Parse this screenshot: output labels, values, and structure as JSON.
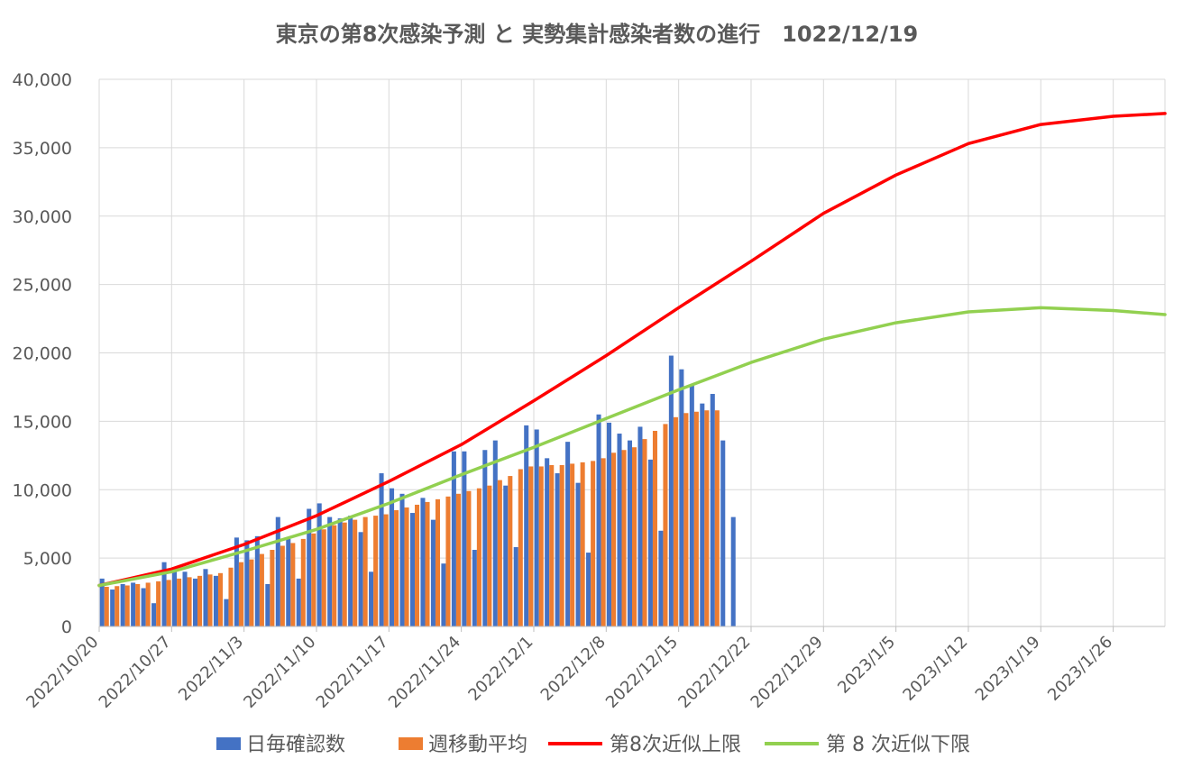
{
  "chart_data": {
    "type": "bar",
    "title": "東京の第8次感染予測 と 実勢集計感染者数の進行　1022/12/19",
    "xlabel": "",
    "ylabel": "",
    "ylim": [
      0,
      40000
    ],
    "yticks": [
      0,
      5000,
      10000,
      15000,
      20000,
      25000,
      30000,
      35000,
      40000
    ],
    "ytick_labels": [
      "0",
      "5,000",
      "10,000",
      "15,000",
      "20,000",
      "25,000",
      "30,000",
      "35,000",
      "40,000"
    ],
    "x_start": "2022/10/20",
    "x_end": "2023/1/31",
    "xtick_labels": [
      "2022/10/20",
      "2022/10/27",
      "2022/11/3",
      "2022/11/10",
      "2022/11/17",
      "2022/11/24",
      "2022/12/1",
      "2022/12/8",
      "2022/12/15",
      "2022/12/22",
      "2022/12/29",
      "2023/1/5",
      "2023/1/12",
      "2023/1/19",
      "2023/1/26"
    ],
    "grid": true,
    "legend_position": "bottom",
    "series": [
      {
        "name": "日毎確認数",
        "type": "bar",
        "color": "#4472C4",
        "x_start": "2022/10/20",
        "values": [
          3500,
          2700,
          3100,
          3200,
          2800,
          1700,
          4700,
          4300,
          4000,
          3500,
          4200,
          3700,
          2000,
          6500,
          6300,
          6600,
          3100,
          8000,
          6400,
          3500,
          8600,
          9000,
          8000,
          7900,
          8100,
          6900,
          4000,
          11200,
          10100,
          9700,
          8300,
          9400,
          7800,
          4600,
          12800,
          12800,
          5600,
          12900,
          13600,
          10300,
          5800,
          14700,
          14400,
          12300,
          11200,
          13500,
          10500,
          5400,
          15500,
          14900,
          14100,
          13600,
          14600,
          12200,
          7000,
          19800,
          18800,
          17700,
          16300,
          17000,
          13600,
          8000
        ]
      },
      {
        "name": "週移動平均",
        "type": "bar",
        "color": "#ED7D31",
        "x_start": "2022/10/20",
        "values": [
          2900,
          2950,
          3000,
          3100,
          3200,
          3300,
          3400,
          3500,
          3600,
          3700,
          3800,
          3900,
          4300,
          4700,
          4900,
          5300,
          5600,
          5900,
          6100,
          6400,
          6800,
          7100,
          7400,
          7600,
          7800,
          8000,
          8100,
          8200,
          8500,
          8700,
          8900,
          9100,
          9300,
          9500,
          9700,
          9900,
          10100,
          10300,
          10700,
          11000,
          11500,
          11700,
          11700,
          11800,
          11800,
          11900,
          12000,
          12100,
          12300,
          12700,
          12900,
          13100,
          13700,
          14300,
          14800,
          15300,
          15600,
          15700,
          15800,
          15800
        ]
      },
      {
        "name": "第8次近似上限",
        "type": "line",
        "color": "#FF0000",
        "x": [
          "2022/10/20",
          "2022/10/27",
          "2022/11/3",
          "2022/11/10",
          "2022/11/17",
          "2022/11/24",
          "2022/12/1",
          "2022/12/8",
          "2022/12/15",
          "2022/12/22",
          "2022/12/29",
          "2023/1/5",
          "2023/1/12",
          "2023/1/19",
          "2023/1/26",
          "2023/1/31"
        ],
        "values": [
          3000,
          4200,
          6000,
          8100,
          10600,
          13300,
          16500,
          19800,
          23300,
          26700,
          30200,
          33000,
          35300,
          36700,
          37300,
          37500
        ]
      },
      {
        "name": "第 8 次近似下限",
        "type": "line",
        "color": "#92D050",
        "x": [
          "2022/10/20",
          "2022/10/27",
          "2022/11/3",
          "2022/11/10",
          "2022/11/17",
          "2022/11/24",
          "2022/12/1",
          "2022/12/8",
          "2022/12/15",
          "2022/12/22",
          "2022/12/29",
          "2023/1/5",
          "2023/1/12",
          "2023/1/19",
          "2023/1/26",
          "2023/1/31"
        ],
        "values": [
          3000,
          4000,
          5500,
          7100,
          9000,
          11100,
          13100,
          15200,
          17300,
          19300,
          21000,
          22200,
          23000,
          23300,
          23100,
          22800
        ]
      }
    ]
  }
}
